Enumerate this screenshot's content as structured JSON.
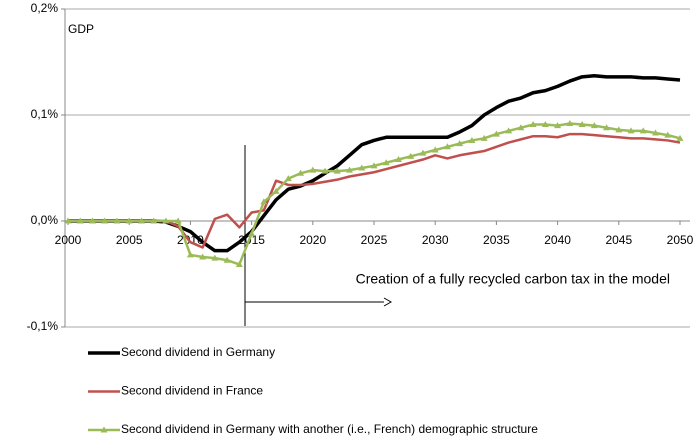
{
  "chart_data": {
    "type": "line",
    "ylabel": "GDP",
    "annotation": "Creation of a fully recycled carbon tax in the model",
    "x": [
      2000,
      2001,
      2002,
      2003,
      2004,
      2005,
      2006,
      2007,
      2008,
      2009,
      2010,
      2011,
      2012,
      2013,
      2014,
      2015,
      2016,
      2017,
      2018,
      2019,
      2020,
      2021,
      2022,
      2023,
      2024,
      2025,
      2026,
      2027,
      2028,
      2029,
      2030,
      2031,
      2032,
      2033,
      2034,
      2035,
      2036,
      2037,
      2038,
      2039,
      2040,
      2041,
      2042,
      2043,
      2044,
      2045,
      2046,
      2047,
      2048,
      2049,
      2050
    ],
    "xlim": [
      2000,
      2050
    ],
    "xticks": [
      2000,
      2005,
      2010,
      2015,
      2020,
      2025,
      2030,
      2035,
      2040,
      2045,
      2050
    ],
    "ylim": [
      -0.1,
      0.2
    ],
    "yticks": [
      {
        "value": -0.1,
        "label": "-0,1%"
      },
      {
        "value": 0,
        "label": "0,0%"
      },
      {
        "value": 0.1,
        "label": "0,1%"
      },
      {
        "value": 0.2,
        "label": "0,2%"
      }
    ],
    "grid": true,
    "series": [
      {
        "name": "Second dividend in Germany",
        "color": "#000000",
        "marker": false,
        "values": [
          0,
          0,
          0,
          0,
          0,
          0,
          0,
          0,
          -0.001,
          -0.005,
          -0.01,
          -0.02,
          -0.028,
          -0.028,
          -0.02,
          -0.01,
          0.005,
          0.02,
          0.03,
          0.033,
          0.038,
          0.045,
          0.052,
          0.062,
          0.072,
          0.076,
          0.079,
          0.079,
          0.079,
          0.079,
          0.079,
          0.079,
          0.084,
          0.09,
          0.1,
          0.107,
          0.113,
          0.116,
          0.121,
          0.123,
          0.127,
          0.132,
          0.136,
          0.137,
          0.136,
          0.136,
          0.136,
          0.135,
          0.135,
          0.134,
          0.133
        ]
      },
      {
        "name": "Second dividend in France",
        "color": "#c0504d",
        "marker": false,
        "values": [
          0,
          0,
          0,
          0,
          0,
          0,
          0,
          0,
          0,
          -0.005,
          -0.02,
          -0.025,
          0.002,
          0.006,
          -0.006,
          0.008,
          0.01,
          0.038,
          0.034,
          0.034,
          0.035,
          0.037,
          0.039,
          0.042,
          0.044,
          0.046,
          0.049,
          0.052,
          0.055,
          0.058,
          0.062,
          0.059,
          0.062,
          0.064,
          0.066,
          0.07,
          0.074,
          0.077,
          0.08,
          0.08,
          0.079,
          0.082,
          0.082,
          0.081,
          0.08,
          0.079,
          0.078,
          0.078,
          0.077,
          0.076,
          0.074
        ]
      },
      {
        "name": "Second dividend in Germany with another (i.e., French) demographic structure",
        "color": "#9bbb59",
        "marker": true,
        "values": [
          0,
          0,
          0,
          0,
          0,
          0,
          0,
          0,
          0,
          0,
          -0.032,
          -0.034,
          -0.035,
          -0.037,
          -0.041,
          -0.012,
          0.018,
          0.028,
          0.04,
          0.045,
          0.048,
          0.047,
          0.047,
          0.048,
          0.05,
          0.052,
          0.055,
          0.058,
          0.061,
          0.064,
          0.067,
          0.07,
          0.073,
          0.076,
          0.078,
          0.082,
          0.085,
          0.088,
          0.091,
          0.091,
          0.09,
          0.092,
          0.091,
          0.09,
          0.088,
          0.086,
          0.085,
          0.085,
          0.083,
          0.081,
          0.078
        ]
      }
    ]
  }
}
